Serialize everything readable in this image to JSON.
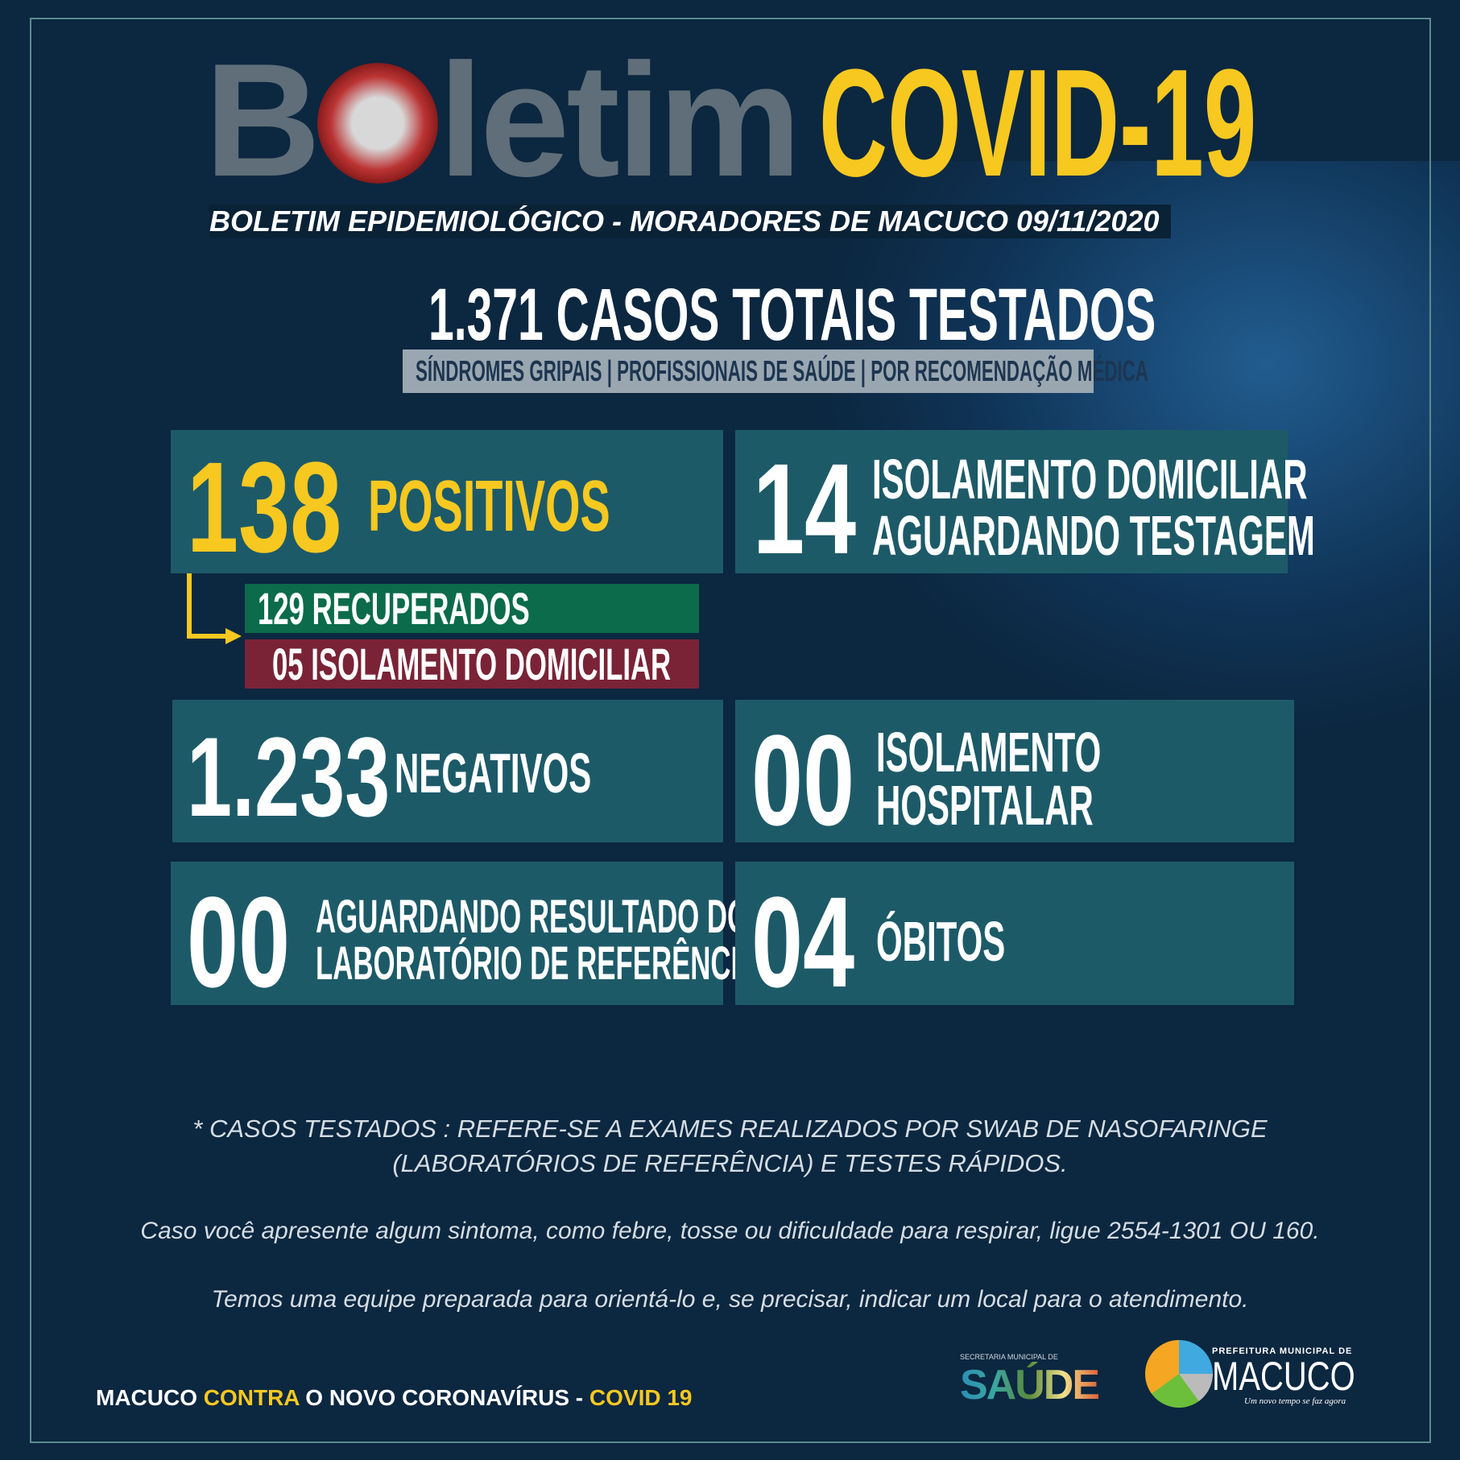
{
  "header": {
    "title_word": "Boletim",
    "title_covid": "COVID-19",
    "subtitle": "BOLETIM EPIDEMIOLÓGICO - MORADORES DE MACUCO 09/11/2020"
  },
  "totals": {
    "number": "1.371",
    "label": "CASOS TOTAIS TESTADOS",
    "categories": "SÍNDROMES GRIPAIS  | PROFISSIONAIS DE SAÚDE | POR RECOMENDAÇÃO MÉDICA"
  },
  "stats": {
    "positivos": {
      "value": "138",
      "label": "POSITIVOS"
    },
    "recuperados": "129 RECUPERADOS",
    "isolamento_pos": "05 ISOLAMENTO DOMICILIAR",
    "aguardando_testagem": {
      "value": "14",
      "line1": "ISOLAMENTO DOMICILIAR",
      "line2": "AGUARDANDO TESTAGEM"
    },
    "negativos": {
      "value": "1.233",
      "label": "NEGATIVOS"
    },
    "hospitalar": {
      "value": "00",
      "line1": "ISOLAMENTO",
      "line2": "HOSPITALAR"
    },
    "aguardando_resultado": {
      "value": "00",
      "line1": "AGUARDANDO RESULTADO DO",
      "line2": "LABORATÓRIO DE REFERÊNCIA"
    },
    "obitos": {
      "value": "04",
      "label": "ÓBITOS"
    }
  },
  "notes": {
    "line1": "* CASOS TESTADOS : REFERE-SE A EXAMES REALIZADOS POR SWAB DE NASOFARINGE",
    "line2": "(LABORATÓRIOS DE REFERÊNCIA)  E  TESTES RÁPIDOS.",
    "call": "Caso você apresente algum sintoma, como febre, tosse ou dificuldade para respirar, ligue 2554-1301 OU 160.",
    "team": "Temos uma equipe preparada para orientá-lo e, se precisar, indicar um local para o atendimento."
  },
  "footer": {
    "slogan_a": "MACUCO ",
    "slogan_b": "CONTRA",
    "slogan_c": " O NOVO CORONAVÍRUS - ",
    "slogan_d": "COVID 19",
    "saude_small": "SECRETARIA MUNICIPAL DE",
    "saude": "SAÚDE",
    "pref_small": "PREFEITURA MUNICIPAL DE",
    "macuco": "MACUCO",
    "macuco_tag": "Um novo tempo se faz agora"
  },
  "colors": {
    "background": "#0c2740",
    "box": "#1d5a68",
    "accent": "#f7c820",
    "recuperados": "#0b6b4a",
    "isolamento": "#7a2336"
  }
}
